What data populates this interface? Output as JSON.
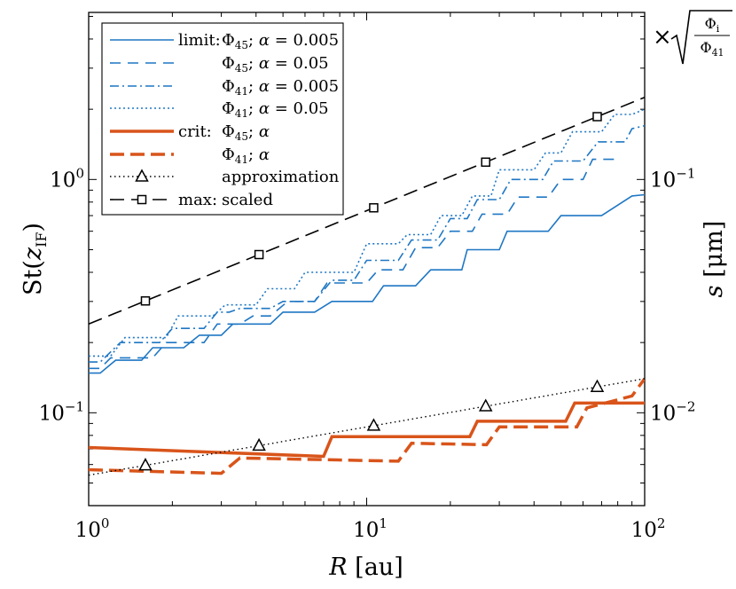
{
  "chart_data": {
    "type": "line",
    "xscale": "log",
    "yscale": "log",
    "xlim": [
      1,
      100
    ],
    "ylim": [
      0.04,
      5.2
    ],
    "xlabel": "R [au]",
    "ylabel": "St(z_IF)",
    "y2label": "s [μm]",
    "y2factor": "×√(Φi/Φ41)",
    "y2_tick_labels": [
      {
        "label": "10^-2",
        "at_y": 0.1
      },
      {
        "label": "10^-1",
        "at_y": 1.0
      }
    ],
    "x_ticks": [
      1,
      10,
      100
    ],
    "y_ticks": [
      0.1,
      1
    ],
    "colors": {
      "blue": "#1f77c4",
      "orange": "#d9541a",
      "black": "#000000"
    },
    "series": [
      {
        "name": "limit: Φ45; α = 0.005",
        "color": "#1f77c4",
        "dash": "solid",
        "width": 1.6,
        "points": [
          [
            1,
            0.148
          ],
          [
            1.1,
            0.148
          ],
          [
            1.25,
            0.168
          ],
          [
            1.55,
            0.168
          ],
          [
            1.7,
            0.19
          ],
          [
            2.2,
            0.19
          ],
          [
            2.5,
            0.215
          ],
          [
            3.0,
            0.215
          ],
          [
            3.3,
            0.24
          ],
          [
            4.5,
            0.24
          ],
          [
            5.0,
            0.27
          ],
          [
            6.5,
            0.27
          ],
          [
            7.5,
            0.3
          ],
          [
            10.5,
            0.3
          ],
          [
            11.5,
            0.35
          ],
          [
            15,
            0.35
          ],
          [
            17,
            0.41
          ],
          [
            22,
            0.41
          ],
          [
            23,
            0.5
          ],
          [
            30,
            0.5
          ],
          [
            32,
            0.6
          ],
          [
            45,
            0.6
          ],
          [
            50,
            0.7
          ],
          [
            70,
            0.7
          ],
          [
            90,
            0.85
          ],
          [
            100,
            0.86
          ]
        ]
      },
      {
        "name": "limit: Φ45; α = 0.05",
        "color": "#1f77c4",
        "dash": "12,8",
        "width": 1.6,
        "points": [
          [
            1,
            0.155
          ],
          [
            1.1,
            0.155
          ],
          [
            1.2,
            0.172
          ],
          [
            1.7,
            0.172
          ],
          [
            1.9,
            0.2
          ],
          [
            2.6,
            0.2
          ],
          [
            2.9,
            0.24
          ],
          [
            3.5,
            0.24
          ],
          [
            3.9,
            0.26
          ],
          [
            4.5,
            0.26
          ],
          [
            5.2,
            0.3
          ],
          [
            6.5,
            0.3
          ],
          [
            7.2,
            0.36
          ],
          [
            10,
            0.36
          ],
          [
            11,
            0.41
          ],
          [
            13.5,
            0.41
          ],
          [
            15,
            0.51
          ],
          [
            18,
            0.51
          ],
          [
            20,
            0.6
          ],
          [
            24,
            0.6
          ],
          [
            26,
            0.71
          ],
          [
            32,
            0.71
          ],
          [
            35,
            0.84
          ],
          [
            45,
            0.84
          ],
          [
            50,
            1.0
          ],
          [
            60,
            1.0
          ],
          [
            65,
            1.22
          ],
          [
            80,
            1.22
          ]
        ]
      },
      {
        "name": "limit: Φ41; α = 0.005",
        "color": "#1f77c4",
        "dash": "10,4,2,4",
        "width": 1.6,
        "points": [
          [
            1,
            0.165
          ],
          [
            1.1,
            0.165
          ],
          [
            1.3,
            0.2
          ],
          [
            1.8,
            0.2
          ],
          [
            2.0,
            0.23
          ],
          [
            2.6,
            0.23
          ],
          [
            2.9,
            0.27
          ],
          [
            3.2,
            0.27
          ],
          [
            3.5,
            0.28
          ],
          [
            4.5,
            0.28
          ],
          [
            5.0,
            0.3
          ],
          [
            6.5,
            0.3
          ],
          [
            7.5,
            0.37
          ],
          [
            9,
            0.37
          ],
          [
            10,
            0.45
          ],
          [
            13,
            0.45
          ],
          [
            14.5,
            0.55
          ],
          [
            18,
            0.55
          ],
          [
            20,
            0.68
          ],
          [
            23,
            0.68
          ],
          [
            25,
            0.82
          ],
          [
            30,
            0.82
          ],
          [
            33,
            1.0
          ],
          [
            43,
            1.0
          ],
          [
            47,
            1.2
          ],
          [
            60,
            1.2
          ],
          [
            68,
            1.45
          ],
          [
            85,
            1.45
          ],
          [
            90,
            1.65
          ],
          [
            100,
            1.7
          ]
        ]
      },
      {
        "name": "limit: Φ41; α = 0.05",
        "color": "#1f77c4",
        "dash": "2,3",
        "width": 1.6,
        "points": [
          [
            1,
            0.175
          ],
          [
            1.2,
            0.175
          ],
          [
            1.35,
            0.21
          ],
          [
            1.9,
            0.21
          ],
          [
            2.1,
            0.26
          ],
          [
            2.8,
            0.26
          ],
          [
            3.1,
            0.29
          ],
          [
            4.0,
            0.29
          ],
          [
            4.4,
            0.34
          ],
          [
            5.5,
            0.34
          ],
          [
            6.0,
            0.4
          ],
          [
            9,
            0.4
          ],
          [
            10,
            0.53
          ],
          [
            13,
            0.53
          ],
          [
            14,
            0.58
          ],
          [
            17,
            0.58
          ],
          [
            18.5,
            0.7
          ],
          [
            22,
            0.7
          ],
          [
            24,
            0.85
          ],
          [
            28,
            0.85
          ],
          [
            30,
            1.1
          ],
          [
            40,
            1.1
          ],
          [
            44,
            1.3
          ],
          [
            50,
            1.3
          ],
          [
            55,
            1.6
          ],
          [
            70,
            1.6
          ],
          [
            78,
            1.9
          ],
          [
            90,
            1.9
          ],
          [
            100,
            2.0
          ]
        ]
      },
      {
        "name": "crit: Φ45; α",
        "color": "#d9541a",
        "dash": "solid",
        "width": 3.5,
        "points": [
          [
            1,
            0.071
          ],
          [
            7.0,
            0.065
          ],
          [
            7.5,
            0.079
          ],
          [
            23.5,
            0.079
          ],
          [
            25,
            0.092
          ],
          [
            52,
            0.092
          ],
          [
            56,
            0.11
          ],
          [
            100,
            0.11
          ]
        ]
      },
      {
        "name": "crit: Φ41; α",
        "color": "#d9541a",
        "dash": "16,7",
        "width": 3.5,
        "points": [
          [
            1,
            0.057
          ],
          [
            3.0,
            0.055
          ],
          [
            3.5,
            0.064
          ],
          [
            13,
            0.062
          ],
          [
            14.5,
            0.074
          ],
          [
            27,
            0.073
          ],
          [
            30,
            0.087
          ],
          [
            57,
            0.087
          ],
          [
            62,
            0.105
          ],
          [
            90,
            0.118
          ],
          [
            100,
            0.14
          ]
        ]
      },
      {
        "name": "approximation",
        "color": "#000000",
        "dash": "1.5,3.5",
        "width": 1.4,
        "marker": "triangle",
        "points": [
          [
            1,
            0.054
          ],
          [
            100,
            0.14
          ]
        ],
        "marker_x": [
          1.6,
          4.1,
          10.6,
          26.8,
          67.5
        ]
      },
      {
        "name": "max: scaled",
        "color": "#000000",
        "dash": "16,8",
        "width": 1.6,
        "marker": "square",
        "points": [
          [
            1,
            0.24
          ],
          [
            100,
            2.25
          ]
        ],
        "marker_x": [
          1.6,
          4.1,
          10.6,
          26.8,
          67.5
        ]
      }
    ],
    "legend": {
      "placement": "top-left",
      "entries": [
        {
          "prefix": "limit:",
          "label": "Φ45; α = 0.005"
        },
        {
          "prefix": "",
          "label": "Φ45; α = 0.05"
        },
        {
          "prefix": "",
          "label": "Φ41; α = 0.005"
        },
        {
          "prefix": "",
          "label": "Φ41; α = 0.05"
        },
        {
          "prefix": "crit:",
          "label": "Φ45; α"
        },
        {
          "prefix": "",
          "label": "Φ41; α"
        },
        {
          "prefix": "",
          "label": "approximation"
        },
        {
          "prefix": "max:",
          "label": "scaled"
        }
      ]
    }
  }
}
